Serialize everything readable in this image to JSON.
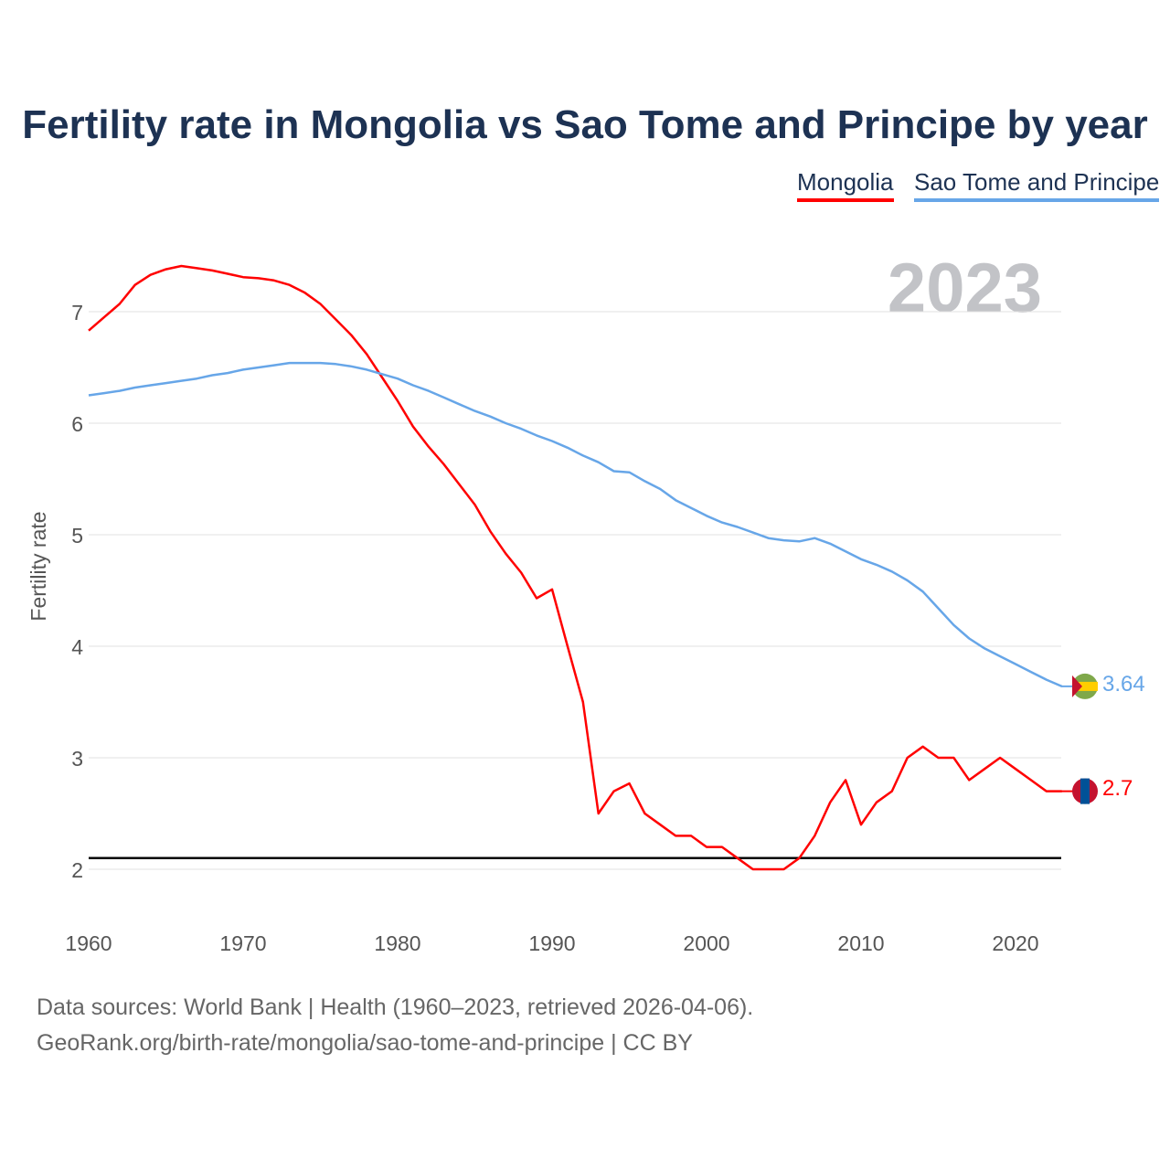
{
  "title": "Fertility rate in Mongolia vs Sao Tome and Principe by year",
  "year_label": "2023",
  "sources": [
    "Data sources: World Bank | Health (1960–2023, retrieved 2026-04-06).",
    "GeoRank.org/birth-rate/mongolia/sao-tome-and-principe | CC BY"
  ],
  "chart_data": {
    "type": "line",
    "title": "Fertility rate in Mongolia vs Sao Tome and Principe by year",
    "xlabel": "",
    "ylabel": "Fertility rate",
    "xlim": [
      1960,
      2023
    ],
    "ylim": [
      1.5,
      7.6
    ],
    "xticks": [
      "1960",
      "1970",
      "1980",
      "1990",
      "2000",
      "2010",
      "2020"
    ],
    "yticks": [
      "2",
      "3",
      "4",
      "5",
      "6",
      "7"
    ],
    "grid": true,
    "legend_position": "top-right",
    "reference_line": 2.1,
    "x_start": 1960,
    "series": [
      {
        "name": "Mongolia",
        "color": "#ff0000",
        "end_label": "2.7",
        "values": [
          6.83,
          6.95,
          7.07,
          7.24,
          7.33,
          7.38,
          7.41,
          7.39,
          7.37,
          7.34,
          7.31,
          7.3,
          7.28,
          7.24,
          7.17,
          7.07,
          6.93,
          6.79,
          6.62,
          6.41,
          6.2,
          5.97,
          5.79,
          5.63,
          5.45,
          5.27,
          5.03,
          4.83,
          4.66,
          4.43,
          4.51,
          4.0,
          3.5,
          2.5,
          2.7,
          2.77,
          2.5,
          2.4,
          2.3,
          2.3,
          2.2,
          2.2,
          2.1,
          2.0,
          2.0,
          2.0,
          2.1,
          2.3,
          2.6,
          2.8,
          2.4,
          2.6,
          2.7,
          3.0,
          3.1,
          3.0,
          3.0,
          2.8,
          2.9,
          3.0,
          2.9,
          2.8,
          2.7,
          2.7
        ]
      },
      {
        "name": "Sao Tome and Principe",
        "color": "#67a6e8",
        "end_label": "3.64",
        "values": [
          6.25,
          6.27,
          6.29,
          6.32,
          6.34,
          6.36,
          6.38,
          6.4,
          6.43,
          6.45,
          6.48,
          6.5,
          6.52,
          6.54,
          6.54,
          6.54,
          6.53,
          6.51,
          6.48,
          6.44,
          6.4,
          6.34,
          6.29,
          6.23,
          6.17,
          6.11,
          6.06,
          6.0,
          5.95,
          5.89,
          5.84,
          5.78,
          5.71,
          5.65,
          5.57,
          5.56,
          5.48,
          5.41,
          5.31,
          5.24,
          5.17,
          5.11,
          5.07,
          5.02,
          4.97,
          4.95,
          4.94,
          4.97,
          4.92,
          4.85,
          4.78,
          4.73,
          4.67,
          4.59,
          4.49,
          4.34,
          4.19,
          4.07,
          3.98,
          3.91,
          3.84,
          3.77,
          3.7,
          3.64
        ]
      }
    ]
  }
}
